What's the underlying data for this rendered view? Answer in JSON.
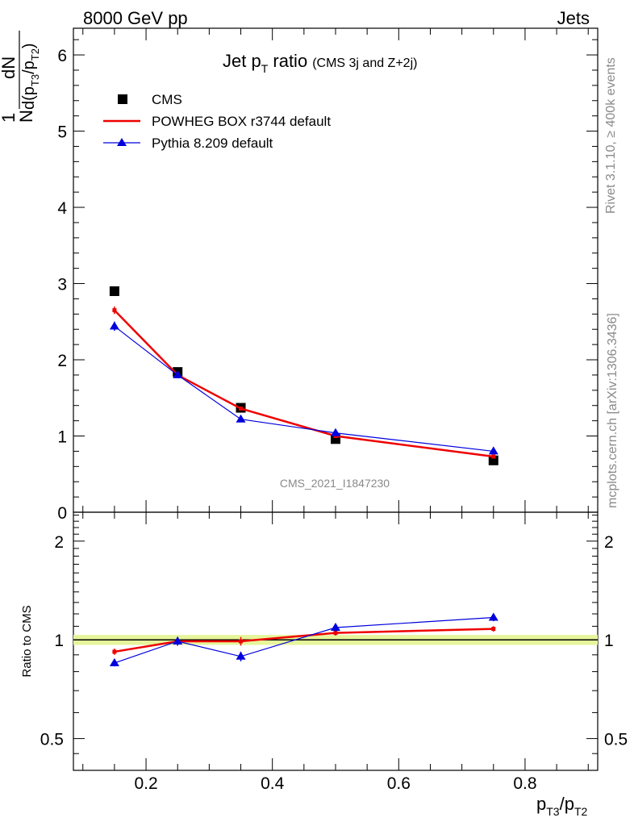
{
  "header": {
    "left": "8000 GeV pp",
    "right": "Jets",
    "side_rivet": "Rivet 3.1.10, ≥ 400k events",
    "side_mcplots": "mcplots.cern.ch [arXiv:1306.3436]",
    "watermark": "CMS_2021_I1847230"
  },
  "chart_data": [
    {
      "type": "line",
      "title_main": "Jet p",
      "title_sub": "T",
      "title_word": " ratio",
      "title_note": "(CMS 3j and Z+2j)",
      "ylabel_num": "dN",
      "ylabel_pre": "1",
      "ylabel_den": "N",
      "ylabel_den_expr": "d(p",
      "ylabel_den_sub1": "T3",
      "ylabel_den_mid": "/p",
      "ylabel_den_sub2": "T2",
      "ylabel_den_end": ")",
      "ylim": [
        0,
        6.35
      ],
      "yticks": [
        "0",
        "1",
        "2",
        "3",
        "4",
        "5",
        "6"
      ],
      "legend_position": "top-left",
      "x": [
        0.15,
        0.25,
        0.35,
        0.5,
        0.75
      ],
      "series": [
        {
          "name": "CMS",
          "values": [
            2.9,
            1.84,
            1.37,
            0.96,
            0.68
          ],
          "color": "#000000",
          "marker": "square"
        },
        {
          "name": "POWHEG BOX r3744 default",
          "values": [
            2.65,
            1.8,
            1.36,
            1.0,
            0.73
          ],
          "errors": [
            0.05,
            0.03,
            0.02,
            0.01,
            0.01
          ],
          "color": "#ee0000",
          "marker": "line"
        },
        {
          "name": "Pythia 8.209 default",
          "values": [
            2.44,
            1.8,
            1.22,
            1.04,
            0.8
          ],
          "errors": [
            0.06,
            0.04,
            0.03,
            0.02,
            0.01
          ],
          "color": "#0000dd",
          "marker": "triangle"
        }
      ]
    },
    {
      "type": "line",
      "ylabel": "Ratio to CMS",
      "xlabel_main": "p",
      "xlabel_sub1": "T3",
      "xlabel_mid": "/p",
      "xlabel_sub2": "T2",
      "xlim": [
        0.085,
        0.915
      ],
      "xticks": [
        "0.2",
        "0.4",
        "0.6",
        "0.8"
      ],
      "ylim": [
        0.4,
        2.45
      ],
      "yscale": "log",
      "yticks": [
        "0.5",
        "1",
        "2"
      ],
      "reference_band_color": "#e6f59a",
      "x": [
        0.15,
        0.25,
        0.35,
        0.5,
        0.75
      ],
      "series": [
        {
          "name": "POWHEG BOX r3744 default",
          "values": [
            0.92,
            0.99,
            0.99,
            1.05,
            1.08
          ],
          "errors": [
            0.02,
            0.03,
            0.03,
            0.02,
            0.02
          ],
          "color": "#ee0000"
        },
        {
          "name": "Pythia 8.209 default",
          "values": [
            0.85,
            0.99,
            0.89,
            1.09,
            1.17
          ],
          "errors": [
            0.02,
            0.03,
            0.03,
            0.03,
            0.03
          ],
          "color": "#0000dd"
        }
      ]
    }
  ]
}
